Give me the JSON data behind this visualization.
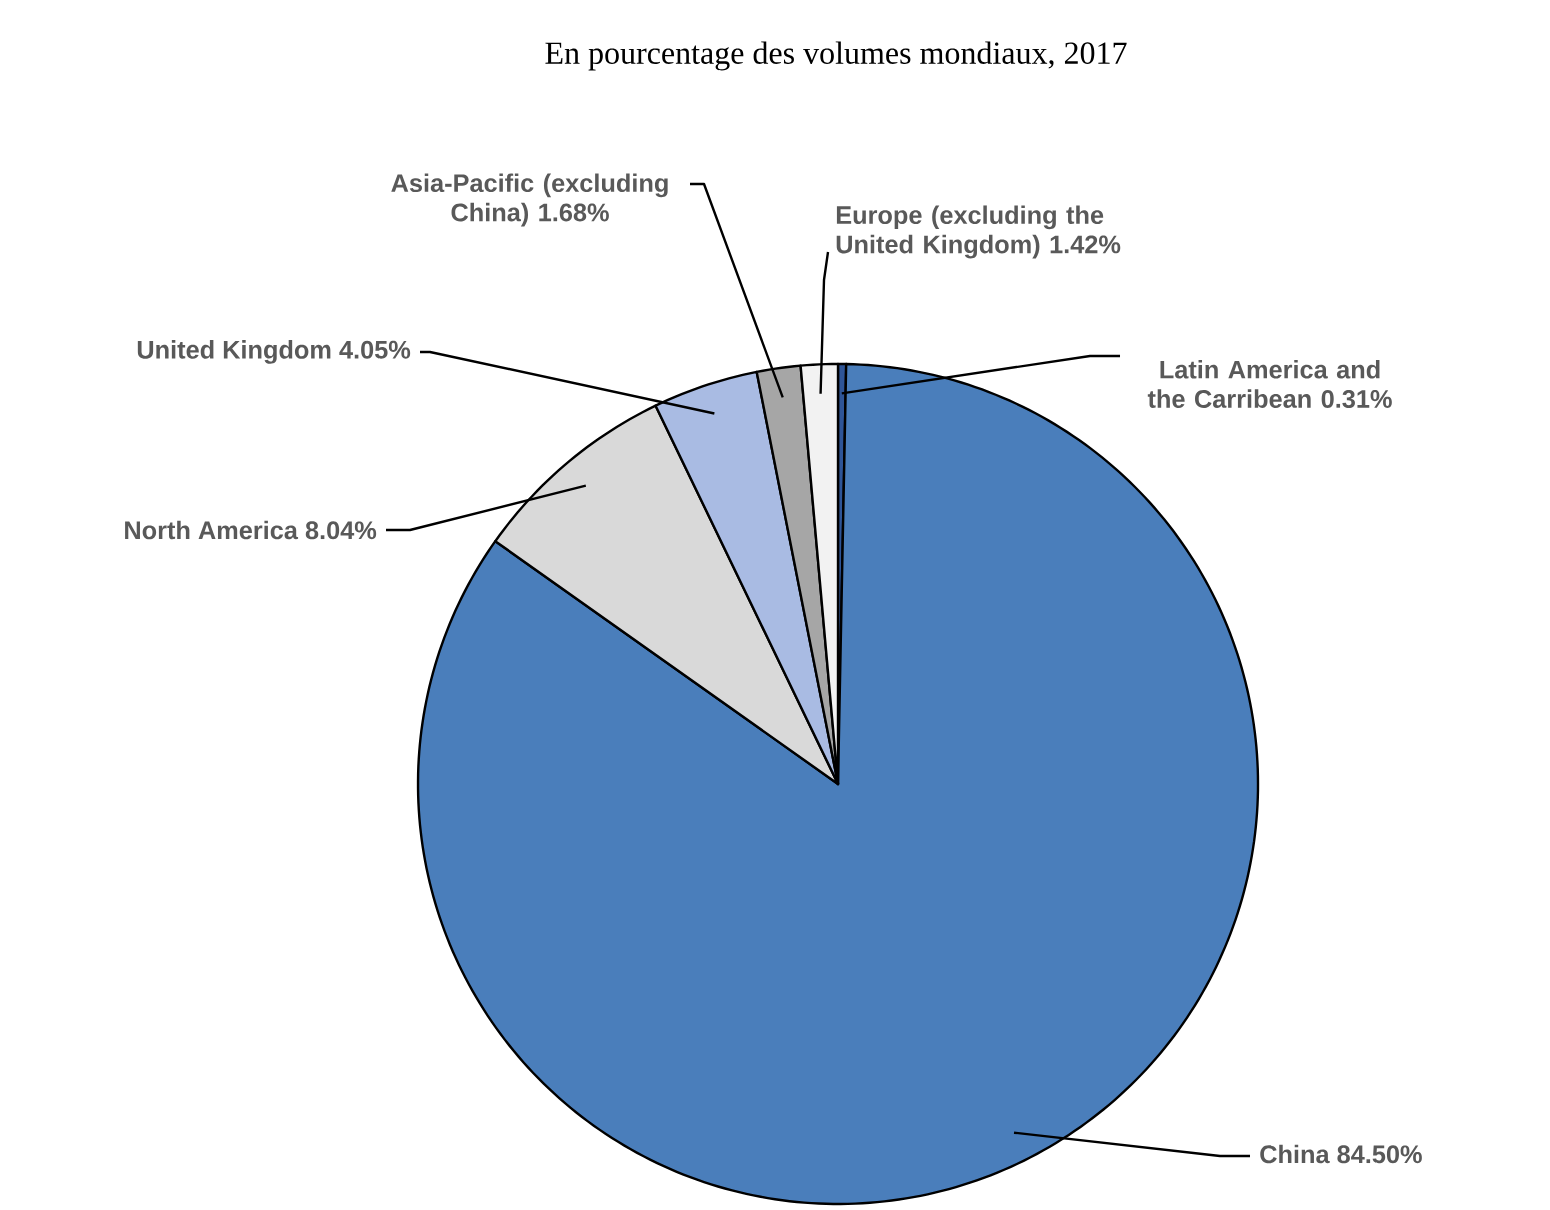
{
  "chart_data": {
    "type": "pie",
    "title": "En pourcentage des volumes mondiaux, 2017",
    "categories": [
      "Latin America and the Carribean",
      "China",
      "North America",
      "United Kingdom",
      "Asia-Pacific (excluding China)",
      "Europe (excluding the United Kingdom)"
    ],
    "values": [
      0.31,
      84.5,
      8.04,
      4.05,
      1.68,
      1.42
    ],
    "value_labels": [
      "0.31%",
      "84.50%",
      "8.04%",
      "4.05%",
      "1.68%",
      "1.42%"
    ],
    "colors": [
      "#2f5597",
      "#4a7ebb",
      "#d9d9d9",
      "#a9bbe3",
      "#a6a6a6",
      "#f2f2f2"
    ]
  }
}
